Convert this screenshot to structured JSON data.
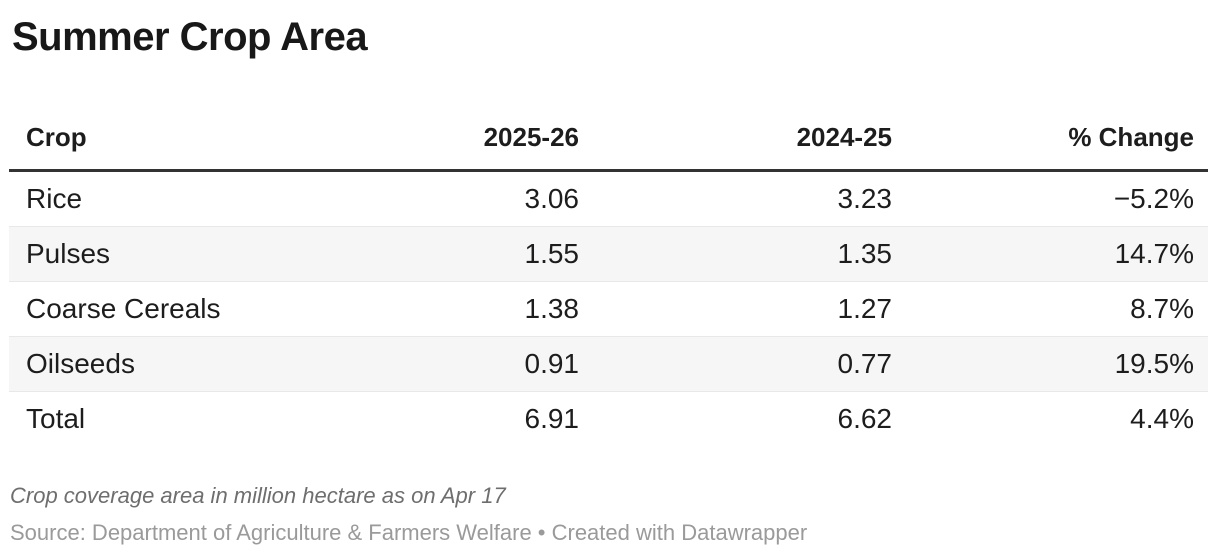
{
  "header": {
    "title": "Summer Crop Area"
  },
  "table": {
    "headers": [
      "Crop",
      "2025-26",
      "2024-25",
      "% Change"
    ],
    "rows": [
      [
        "Rice",
        "3.06",
        "3.23",
        "−5.2%"
      ],
      [
        "Pulses",
        "1.55",
        "1.35",
        "14.7%"
      ],
      [
        "Coarse Cereals",
        "1.38",
        "1.27",
        "8.7%"
      ],
      [
        "Oilseeds",
        "0.91",
        "0.77",
        "19.5%"
      ],
      [
        "Total",
        "6.91",
        "6.62",
        "4.4%"
      ]
    ]
  },
  "footer": {
    "note": "Crop coverage area in million hectare as on Apr 17",
    "source": "Source: Department of Agriculture & Farmers Welfare • Created with Datawrapper"
  },
  "colors": {
    "text": "#1d1d1d",
    "header_rule": "#333333",
    "row_border": "#e8e8e8",
    "stripe": "#f6f6f7",
    "note_text": "#6e6e6e",
    "source_text": "#9a9a9a"
  },
  "chart_data": {
    "type": "table",
    "title": "Summer Crop Area",
    "columns": [
      "Crop",
      "2025-26",
      "2024-25",
      "% Change"
    ],
    "rows": [
      {
        "crop": "Rice",
        "area_2025_26": 3.06,
        "area_2024_25": 3.23,
        "pct_change": -5.2
      },
      {
        "crop": "Pulses",
        "area_2025_26": 1.55,
        "area_2024_25": 1.35,
        "pct_change": 14.7
      },
      {
        "crop": "Coarse Cereals",
        "area_2025_26": 1.38,
        "area_2024_25": 1.27,
        "pct_change": 8.7
      },
      {
        "crop": "Oilseeds",
        "area_2025_26": 0.91,
        "area_2024_25": 0.77,
        "pct_change": 19.5
      },
      {
        "crop": "Total",
        "area_2025_26": 6.91,
        "area_2024_25": 6.62,
        "pct_change": 4.4
      }
    ],
    "units": "million hectare",
    "as_of": "Apr 17",
    "note": "Crop coverage area in million hectare as on Apr 17",
    "source": "Department of Agriculture & Farmers Welfare",
    "layout_hints": {
      "striped_rows": "even",
      "numeric_columns_align": "right"
    }
  }
}
